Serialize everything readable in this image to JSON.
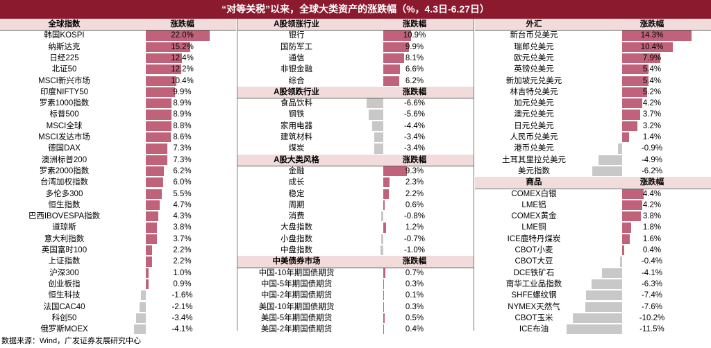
{
  "title": "“对等关税”以来，全球大类资产的涨跌幅（%，4.3日-6.27日）",
  "source": "数据来源：Wind，广发证券发展研究中心",
  "colors": {
    "positive": "#C0637A",
    "negative": "#C8C8C8",
    "header_bg": "#F2DCDB",
    "title_bg": "#8B1A2E"
  },
  "chart_data": [
    {
      "type": "table",
      "sections": [
        {
          "header": "全球指数",
          "value_header": "涨跌幅",
          "items": [
            {
              "name": "韩国KOSPI",
              "value": 22.0
            },
            {
              "name": "纳斯达克",
              "value": 15.2
            },
            {
              "name": "日经225",
              "value": 12.4
            },
            {
              "name": "北证50",
              "value": 12.2
            },
            {
              "name": "MSCI新兴市场",
              "value": 10.4
            },
            {
              "name": "印度NIFTY50",
              "value": 9.9
            },
            {
              "name": "罗素1000指数",
              "value": 8.9
            },
            {
              "name": "标普500",
              "value": 8.9
            },
            {
              "name": "MSCI全球",
              "value": 8.8
            },
            {
              "name": "MSCI发达市场",
              "value": 8.6
            },
            {
              "name": "德国DAX",
              "value": 7.3
            },
            {
              "name": "澳洲标普200",
              "value": 7.3
            },
            {
              "name": "罗素2000指数",
              "value": 6.2
            },
            {
              "name": "台湾加权指数",
              "value": 6.0
            },
            {
              "name": "多伦多300",
              "value": 5.5
            },
            {
              "name": "恒生指数",
              "value": 4.7
            },
            {
              "name": "巴西IBOVESPA指数",
              "value": 4.3
            },
            {
              "name": "道琼斯",
              "value": 3.8
            },
            {
              "name": "意大利指数",
              "value": 3.7
            },
            {
              "name": "英国富时100",
              "value": 2.2
            },
            {
              "name": "上证指数",
              "value": 2.2
            },
            {
              "name": "沪深300",
              "value": 1.0
            },
            {
              "name": "创业板指",
              "value": 0.9
            },
            {
              "name": "恒生科技",
              "value": -1.6
            },
            {
              "name": "法国CAC40",
              "value": -2.1
            },
            {
              "name": "科创50",
              "value": -3.4
            },
            {
              "name": "俄罗斯MOEX",
              "value": -4.1
            }
          ]
        }
      ]
    },
    {
      "type": "table",
      "sections": [
        {
          "header": "A股领涨行业",
          "value_header": "涨跌幅",
          "items": [
            {
              "name": "银行",
              "value": 10.9
            },
            {
              "name": "国防军工",
              "value": 9.9
            },
            {
              "name": "通信",
              "value": 8.1
            },
            {
              "name": "非银金融",
              "value": 6.6
            },
            {
              "name": "综合",
              "value": 6.2
            }
          ]
        },
        {
          "header": "A股领跌行业",
          "value_header": "涨跌幅",
          "items": [
            {
              "name": "食品饮料",
              "value": -6.6
            },
            {
              "name": "钢铁",
              "value": -5.6
            },
            {
              "name": "家用电器",
              "value": -4.4
            },
            {
              "name": "建筑材料",
              "value": -3.4
            },
            {
              "name": "煤炭",
              "value": -3.4
            }
          ]
        },
        {
          "header": "A股大类风格",
          "value_header": "涨跌幅",
          "items": [
            {
              "name": "金融",
              "value": 9.3
            },
            {
              "name": "成长",
              "value": 2.3
            },
            {
              "name": "稳定",
              "value": 2.2
            },
            {
              "name": "周期",
              "value": 0.6
            },
            {
              "name": "消费",
              "value": -0.8
            },
            {
              "name": "大盘指数",
              "value": 1.2
            },
            {
              "name": "小盘指数",
              "value": -0.7
            },
            {
              "name": "中盘指数",
              "value": -1.0
            }
          ]
        },
        {
          "header": "中美债券市场",
          "value_header": "涨跌幅",
          "items": [
            {
              "name": "中国-10年期国债期货",
              "value": 0.7
            },
            {
              "name": "中国-5年期国债期货",
              "value": 0.3
            },
            {
              "name": "中国-2年期国债期货",
              "value": 0.1
            },
            {
              "name": "美国-10年期国债期货",
              "value": 0.3
            },
            {
              "name": "美国-5年期国债期货",
              "value": 0.5
            },
            {
              "name": "美国-2年期国债期货",
              "value": 0.4
            }
          ]
        }
      ]
    },
    {
      "type": "table",
      "sections": [
        {
          "header": "外汇",
          "value_header": "涨跌幅",
          "items": [
            {
              "name": "新台币兑美元",
              "value": 14.3
            },
            {
              "name": "瑞郎兑美元",
              "value": 10.4
            },
            {
              "name": "欧元兑美元",
              "value": 7.9
            },
            {
              "name": "英镑兑美元",
              "value": 5.4
            },
            {
              "name": "新加坡元兑美元",
              "value": 5.4
            },
            {
              "name": "林吉特兑美元",
              "value": 5.2
            },
            {
              "name": "加元兑美元",
              "value": 4.2
            },
            {
              "name": "澳元兑美元",
              "value": 3.7
            },
            {
              "name": "日元兑美元",
              "value": 3.2
            },
            {
              "name": "人民币兑美元",
              "value": 1.4
            },
            {
              "name": "港币兑美元",
              "value": -0.9
            },
            {
              "name": "土耳其里拉兑美元",
              "value": -4.9
            },
            {
              "name": "美元指数",
              "value": -6.2
            }
          ]
        },
        {
          "header": "商品",
          "value_header": "涨跌幅",
          "items": [
            {
              "name": "COMEX白银",
              "value": 4.4
            },
            {
              "name": "LME铝",
              "value": 4.2
            },
            {
              "name": "COMEX黄金",
              "value": 3.8
            },
            {
              "name": "LME铜",
              "value": 1.8
            },
            {
              "name": "ICE鹿特丹煤炭",
              "value": 1.6
            },
            {
              "name": "CBOT小麦",
              "value": 0.4
            },
            {
              "name": "CBOT大豆",
              "value": -0.4
            },
            {
              "name": "DCE铁矿石",
              "value": -4.1
            },
            {
              "name": "南华工业品指数",
              "value": -6.3
            },
            {
              "name": "SHFE螺纹钢",
              "value": -7.4
            },
            {
              "name": "NYMEX天然气",
              "value": -7.6
            },
            {
              "name": "CBOT玉米",
              "value": -10.2
            },
            {
              "name": "ICE布油",
              "value": -11.5
            }
          ]
        }
      ]
    }
  ]
}
